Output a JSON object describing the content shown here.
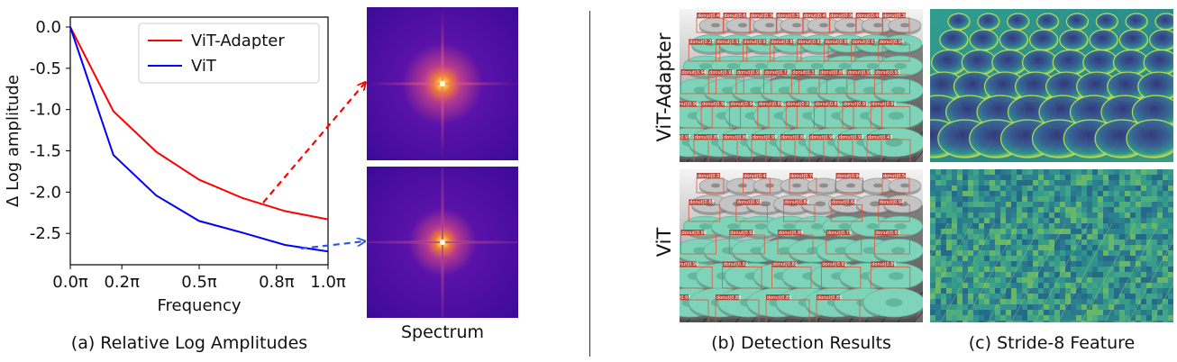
{
  "figure": {
    "caption_a": "(a) Relative Log Amplitudes",
    "caption_spectrum": "Spectrum",
    "caption_b": "(b) Detection Results",
    "caption_c": "(c) Stride-8 Feature",
    "row_labels": [
      "ViT-Adapter",
      "ViT"
    ]
  },
  "chart_data": {
    "type": "line",
    "xlabel": "Frequency",
    "ylabel": "Δ Log amplitude",
    "x_ticks": [
      "0.0π",
      "0.2π",
      "0.5π",
      "0.8π",
      "1.0π"
    ],
    "x_tick_values": [
      0.0,
      0.2,
      0.5,
      0.8,
      1.0
    ],
    "y_ticks": [
      "0.0",
      "-0.5",
      "-1.0",
      "-1.5",
      "-2.0",
      "-2.5"
    ],
    "y_tick_values": [
      0.0,
      -0.5,
      -1.0,
      -1.5,
      -2.0,
      -2.5
    ],
    "xlim": [
      0.0,
      1.0
    ],
    "ylim": [
      -2.88,
      0.12
    ],
    "legend_position": "top-right",
    "series": [
      {
        "name": "ViT-Adapter",
        "color": "#ff0000",
        "x": [
          0.0,
          0.167,
          0.333,
          0.5,
          0.667,
          0.833,
          1.0
        ],
        "y": [
          0.0,
          -1.02,
          -1.51,
          -1.85,
          -2.07,
          -2.23,
          -2.33
        ]
      },
      {
        "name": "ViT",
        "color": "#0000ff",
        "x": [
          0.0,
          0.167,
          0.333,
          0.5,
          0.667,
          0.833,
          1.0
        ],
        "y": [
          0.0,
          -1.55,
          -2.04,
          -2.35,
          -2.49,
          -2.64,
          -2.72
        ]
      }
    ]
  },
  "detections": {
    "vit_adapter": [
      "donut|0.48",
      "donut|0.69",
      "donut|0.36",
      "donut|0.39",
      "donut|0.47",
      "donut|0.90",
      "donut|0.40",
      "donut|0.38",
      "donut|0.25",
      "donut|0.92",
      "donut|0.91",
      "donut|0.85",
      "donut|0.89",
      "donut|0.86",
      "donut|0.67",
      "donut|0.94",
      "donut|0.94",
      "donut|0.93",
      "donut|0.93",
      "donut|0.72",
      "donut|0.31",
      "donut|0.86",
      "donut|0.95",
      "donut|0.93",
      "donut|0.90",
      "donut|0.98",
      "donut|0.94",
      "donut|0.89",
      "donut|0.93",
      "donut|0.85",
      "donut|0.97",
      "donut|0.99",
      "donut|0.97",
      "donut|0.85",
      "donut|0.86",
      "donut|0.99",
      "donut|0.88",
      "donut|0.96",
      "donut|0.93",
      "donut|0.43"
    ],
    "vit": [
      "donut|0.37",
      "donut|0.43",
      "donut|0.78",
      "donut|0.94",
      "donut|0.54",
      "donut|0.88",
      "donut|0.91",
      "donut|0.84",
      "donut|0.64",
      "donut|0.94",
      "donut|0.90",
      "donut|0.92",
      "donut|0.89",
      "donut|0.79",
      "donut|0.91",
      "donut|0.90",
      "donut|0.92",
      "donut|0.89",
      "donut|0.91",
      "donut|0.89",
      "donut|0.97",
      "donut|0.88",
      "donut|0.85",
      "donut|0.85"
    ]
  }
}
